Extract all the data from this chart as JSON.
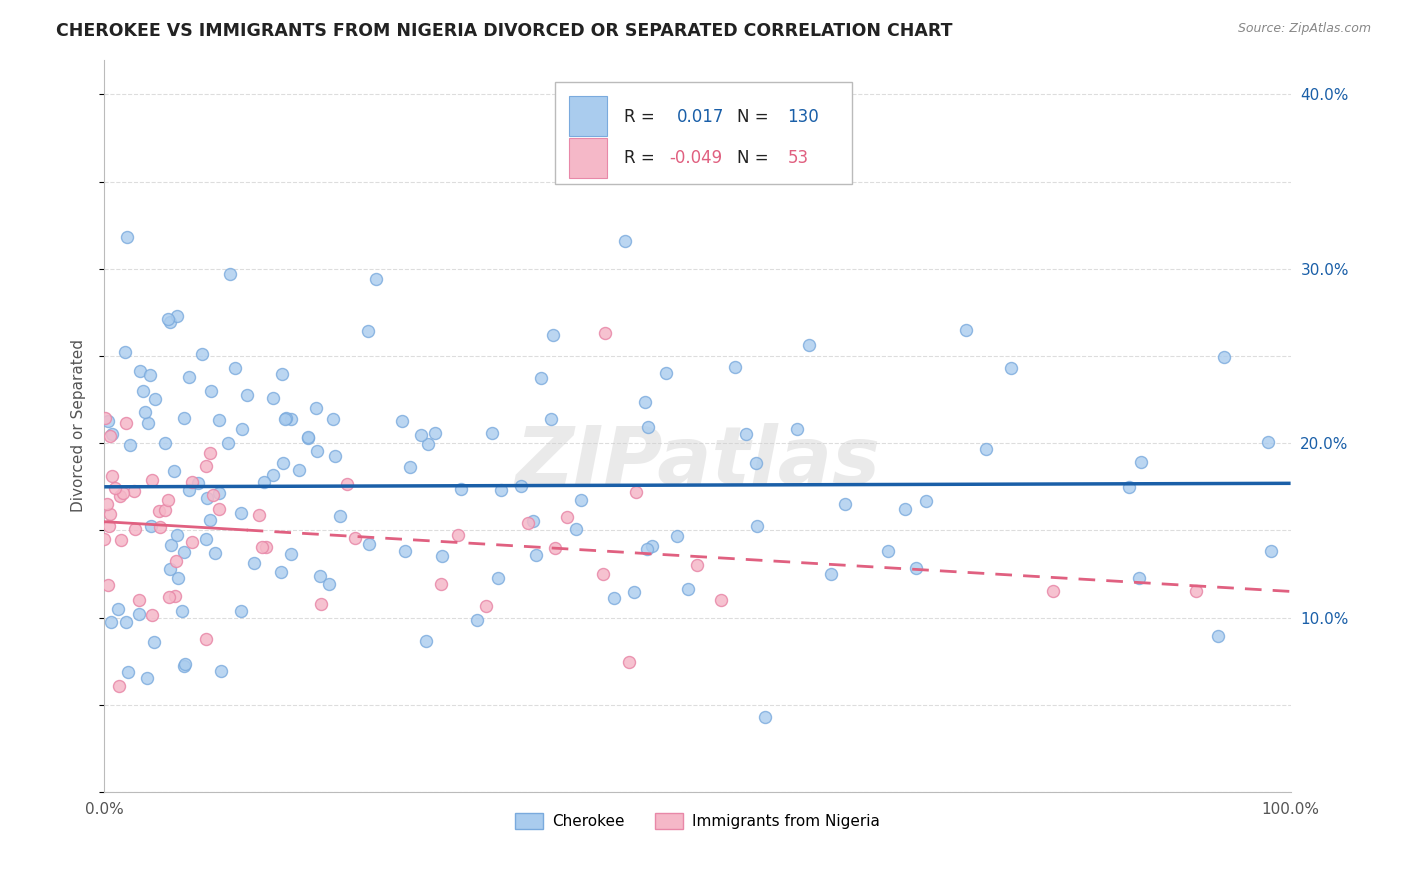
{
  "title": "CHEROKEE VS IMMIGRANTS FROM NIGERIA DIVORCED OR SEPARATED CORRELATION CHART",
  "source": "Source: ZipAtlas.com",
  "ylabel": "Divorced or Separated",
  "xlim": [
    0,
    1.0
  ],
  "ylim": [
    0,
    0.42
  ],
  "cherokee_R": 0.017,
  "cherokee_N": 130,
  "nigeria_R": -0.049,
  "nigeria_N": 53,
  "cherokee_fill": "#aaccee",
  "cherokee_edge": "#7aaadd",
  "cherokee_line_color": "#1a5fa8",
  "nigeria_fill": "#f5b8c8",
  "nigeria_edge": "#e888a8",
  "nigeria_line_color": "#e06080",
  "watermark": "ZIPatlas",
  "legend_label_cherokee": "Cherokee",
  "legend_label_nigeria": "Immigrants from Nigeria",
  "grid_color": "#dddddd",
  "title_color": "#222222",
  "ylabel_color": "#555555",
  "tick_color": "#1a5fa8",
  "xtick_color": "#555555"
}
